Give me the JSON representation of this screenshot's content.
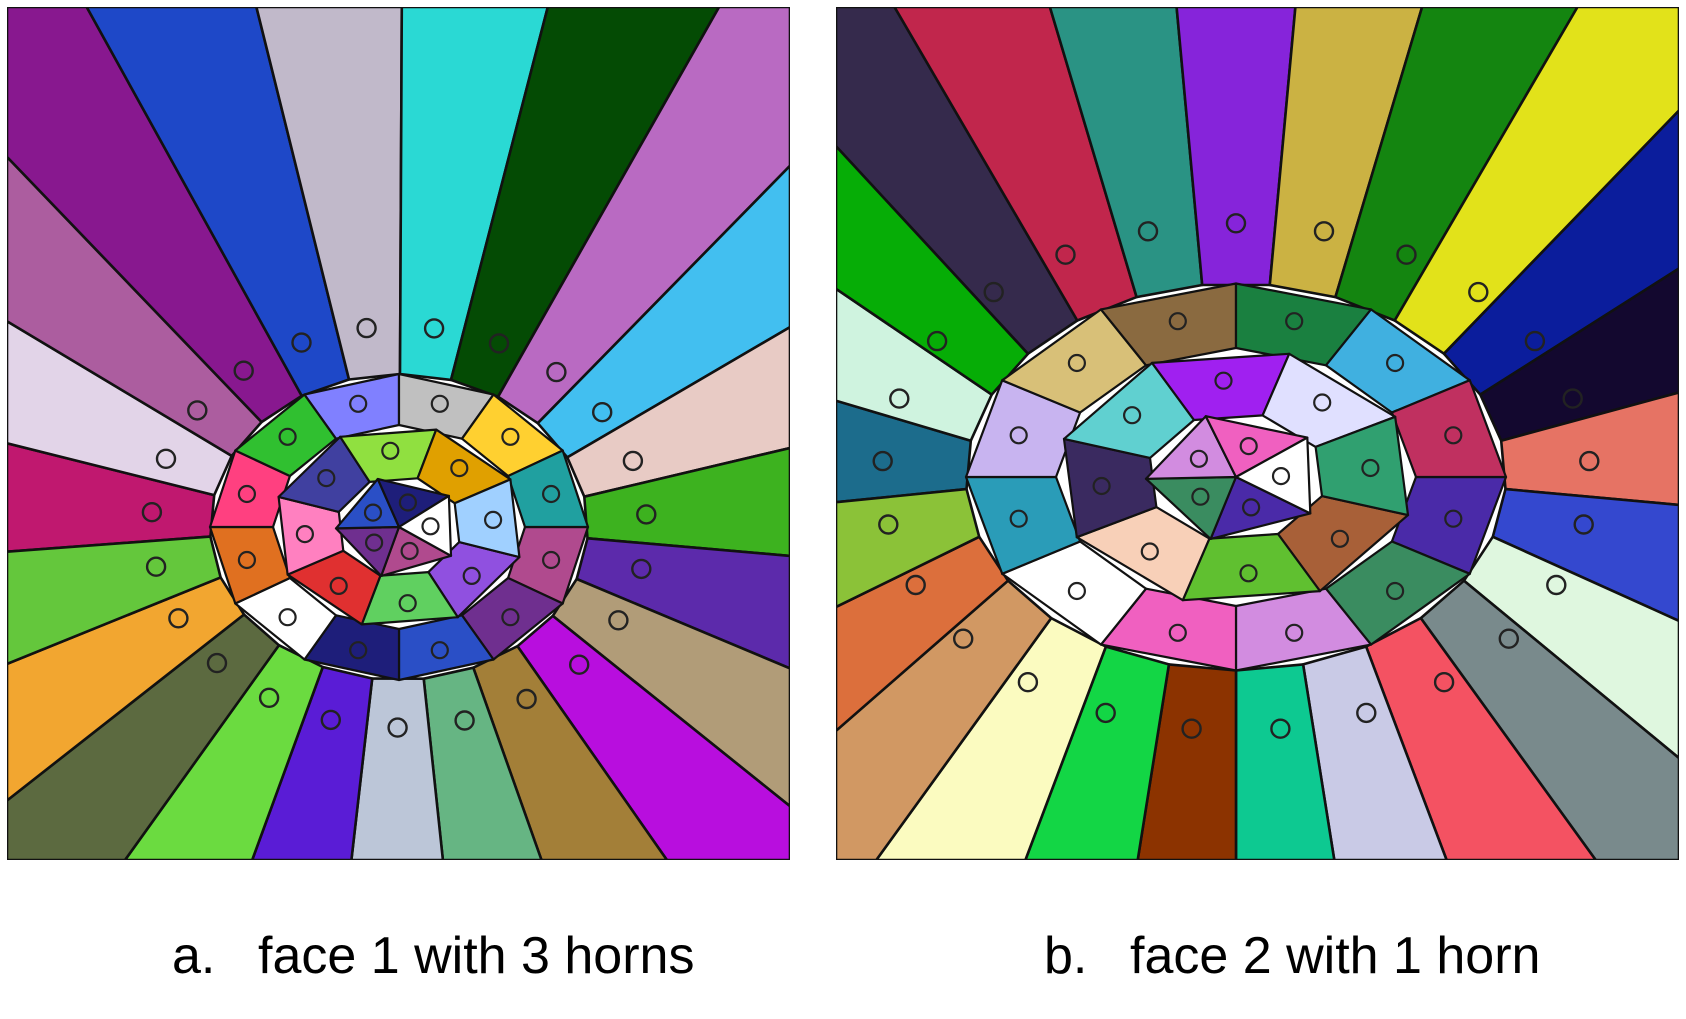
{
  "figure": {
    "panels": [
      {
        "id": "a",
        "letter": "a.",
        "caption": "face 1 with 3 horns",
        "center_colors": [
          "#b04a8e",
          "#6f2f8f",
          "#2a4fc6",
          "#1e1e7a",
          "#ffffff",
          "#e07020",
          "#ff4080",
          "#30c030",
          "#8080ff",
          "#c0c0c0",
          "#ffd030",
          "#20a0a0",
          "#9050e0",
          "#60d060",
          "#e03030",
          "#ff80c0",
          "#4040a0",
          "#90e040",
          "#e0a000",
          "#a0d0ff"
        ],
        "ray_colors": [
          "#c0186f",
          "#e2d4e8",
          "#ac5d9f",
          "#88188f",
          "#1e48c8",
          "#c1b9ca",
          "#2ad9d4",
          "#044b04",
          "#b96ac2",
          "#42bff0",
          "#e8cbc5",
          "#3db21f",
          "#5c2aab",
          "#b19c78",
          "#b80ede",
          "#a37f38",
          "#66b583",
          "#bcc6d8",
          "#5a1cd6",
          "#6bdb40",
          "#5c6a40",
          "#f2a630",
          "#64c73c"
        ]
      },
      {
        "id": "b",
        "letter": "b.",
        "caption": "face 2 with 1 horn",
        "center_colors": [
          "#4a2aa8",
          "#3a8c60",
          "#d28ce0",
          "#f060c0",
          "#ffffff",
          "#2a9cb8",
          "#c8b4f0",
          "#d8c078",
          "#8a6a40",
          "#1a8040",
          "#40b0e0",
          "#c03060",
          "#a86038",
          "#60c030",
          "#f8d0b8",
          "#3a2a60",
          "#60d0d0",
          "#a020f0",
          "#e0e0ff",
          "#30a070"
        ],
        "ray_colors": [
          "#1c6c8c",
          "#cff3df",
          "#06ad06",
          "#352a4c",
          "#c1264c",
          "#2a9384",
          "#8624da",
          "#cbb243",
          "#148510",
          "#e2e21a",
          "#0b1d9c",
          "#13082f",
          "#e67364",
          "#3448cf",
          "#dff7df",
          "#798a8c",
          "#f45262",
          "#c9cae6",
          "#0dc991",
          "#8c3300",
          "#13d645",
          "#fbfbc0",
          "#d19863",
          "#dc6f3c",
          "#8bc238"
        ]
      }
    ]
  }
}
